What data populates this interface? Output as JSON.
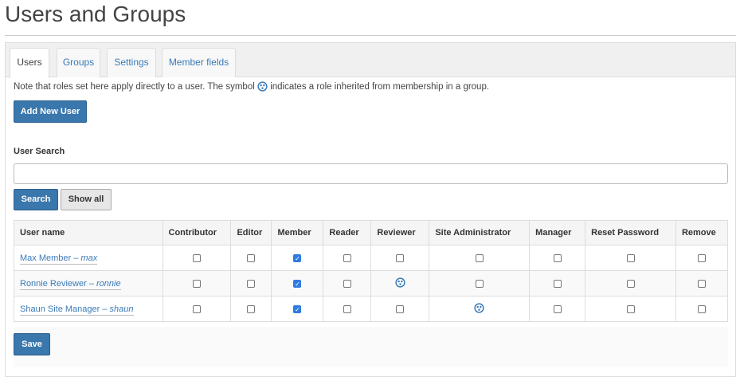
{
  "title": "Users and Groups",
  "tabs": [
    {
      "label": "Users",
      "active": true
    },
    {
      "label": "Groups"
    },
    {
      "label": "Settings"
    },
    {
      "label": "Member fields"
    }
  ],
  "note": {
    "before": "Note that roles set here apply directly to a user. The symbol",
    "after": "indicates a role inherited from membership in a group."
  },
  "add_user_label": "Add New User",
  "search": {
    "label": "User Search",
    "value": "",
    "search_label": "Search",
    "show_all_label": "Show all"
  },
  "table": {
    "columns": [
      "User name",
      "Contributor",
      "Editor",
      "Member",
      "Reader",
      "Reviewer",
      "Site Administrator",
      "Manager",
      "Reset Password",
      "Remove"
    ],
    "rows": [
      {
        "name": "Max Member",
        "id": "max",
        "roles": [
          "off",
          "off",
          "on",
          "off",
          "off",
          "off",
          "off",
          "off",
          "off"
        ]
      },
      {
        "name": "Ronnie Reviewer",
        "id": "ronnie",
        "roles": [
          "off",
          "off",
          "on",
          "off",
          "inherited",
          "off",
          "off",
          "off",
          "off"
        ]
      },
      {
        "name": "Shaun Site Manager",
        "id": "shaun",
        "roles": [
          "off",
          "off",
          "on",
          "off",
          "off",
          "inherited",
          "off",
          "off",
          "off"
        ]
      }
    ]
  },
  "save_label": "Save",
  "colors": {
    "accent": "#3a77ad",
    "link": "#3a7ab8"
  }
}
